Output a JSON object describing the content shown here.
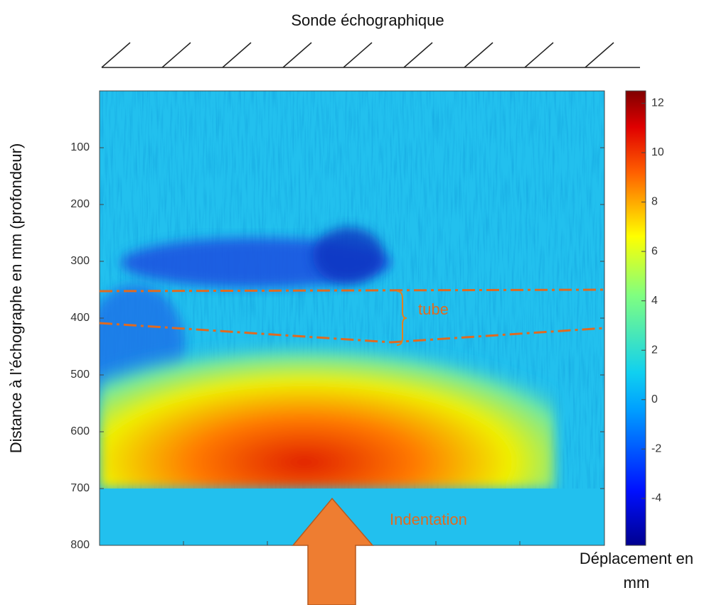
{
  "chart_data": {
    "type": "heatmap",
    "title": "Sonde échographique",
    "ylabel": "Distance à l’échographe en mm  (profondeur)",
    "ylim": [
      0,
      800
    ],
    "yticks": [
      100,
      200,
      300,
      400,
      500,
      600,
      700,
      800
    ],
    "colorbar_label": "Déplacement en mm",
    "clim": [
      -5.9,
      12.5
    ],
    "cticks": [
      -4,
      -2,
      0,
      2,
      4,
      6,
      8,
      10,
      12
    ],
    "annotations": [
      "tube",
      "Indentation"
    ]
  }
}
